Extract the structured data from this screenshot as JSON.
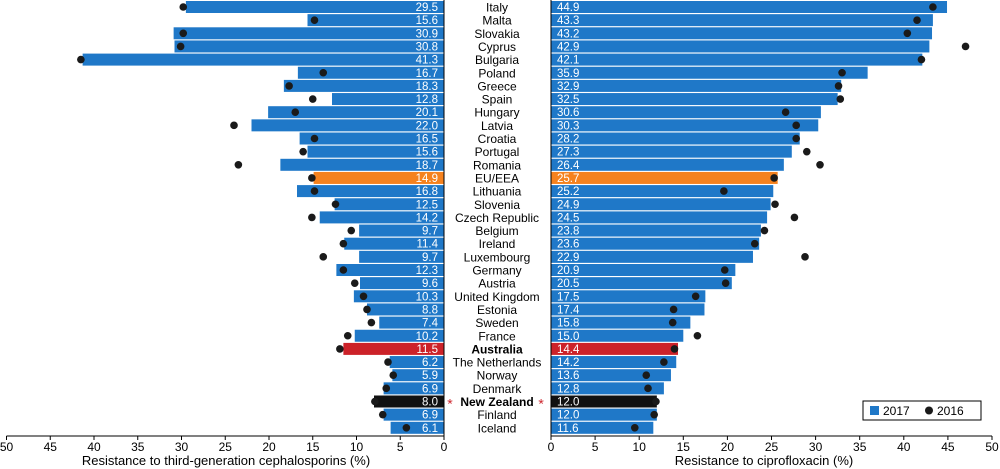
{
  "colors": {
    "bar_default": "#1f78c8",
    "bar_eu": "#f5821f",
    "bar_australia": "#cc2229",
    "bar_newzealand": "#111111",
    "dot": "#1a1a1a",
    "star": "#cc2229",
    "value_text": "#ffffff"
  },
  "chart_data": [
    {
      "type": "bar",
      "orientation": "horizontal",
      "x_direction": "reversed",
      "xlabel": "Resistance to third-generation cephalosporins (%)",
      "xlim": [
        0,
        50
      ],
      "xticks": [
        "0",
        "5",
        "10",
        "15",
        "20",
        "25",
        "30",
        "35",
        "40",
        "45",
        "50"
      ],
      "categories": [
        "Italy",
        "Malta",
        "Slovakia",
        "Cyprus",
        "Bulgaria",
        "Poland",
        "Greece",
        "Spain",
        "Hungary",
        "Latvia",
        "Croatia",
        "Portugal",
        "Romania",
        "EU/EEA",
        "Lithuania",
        "Slovenia",
        "Czech Republic",
        "Belgium",
        "Ireland",
        "Luxembourg",
        "Germany",
        "Austria",
        "United Kingdom",
        "Estonia",
        "Sweden",
        "France",
        "Australia",
        "The Netherlands",
        "Norway",
        "Denmark",
        "New Zealand",
        "Finland",
        "Iceland"
      ],
      "series": [
        {
          "name": "2017",
          "style": "bar",
          "values": [
            29.5,
            15.6,
            30.9,
            30.8,
            41.3,
            16.7,
            18.3,
            12.8,
            20.1,
            22.0,
            16.5,
            15.6,
            18.7,
            14.9,
            16.8,
            12.5,
            14.2,
            9.7,
            11.4,
            9.7,
            12.3,
            9.6,
            10.3,
            8.8,
            7.4,
            10.2,
            11.5,
            6.2,
            5.9,
            6.9,
            8.0,
            6.9,
            6.1
          ],
          "labels": [
            "29.5",
            "15.6",
            "30.9",
            "30.8",
            "41.3",
            "16.7",
            "18.3",
            "12.8",
            "20.1",
            "22.0",
            "16.5",
            "15.6",
            "18.7",
            "14.9",
            "16.8",
            "12.5",
            "14.2",
            "9.7",
            "11.4",
            "9.7",
            "12.3",
            "9.6",
            "10.3",
            "8.8",
            "7.4",
            "10.2",
            "11.5",
            "6.2",
            "5.9",
            "6.9",
            "8.0",
            "6.9",
            "6.1"
          ]
        },
        {
          "name": "2016",
          "style": "dot",
          "values": [
            29.8,
            14.8,
            29.8,
            30.1,
            41.5,
            13.8,
            17.7,
            15.0,
            17.0,
            24.0,
            14.8,
            16.1,
            23.5,
            15.1,
            14.8,
            12.4,
            15.1,
            10.6,
            11.5,
            13.8,
            11.5,
            10.2,
            9.2,
            8.8,
            8.3,
            11.0,
            11.9,
            6.4,
            5.8,
            6.6,
            7.9,
            7.0,
            4.3
          ]
        }
      ]
    },
    {
      "type": "bar",
      "orientation": "horizontal",
      "xlabel": "Resistance to ciprofloxacin (%)",
      "xlim": [
        0,
        50
      ],
      "xticks": [
        "0",
        "5",
        "10",
        "15",
        "20",
        "25",
        "30",
        "35",
        "40",
        "45",
        "50"
      ],
      "categories": [
        "Italy",
        "Malta",
        "Slovakia",
        "Cyprus",
        "Bulgaria",
        "Poland",
        "Greece",
        "Spain",
        "Hungary",
        "Latvia",
        "Croatia",
        "Portugal",
        "Romania",
        "EU/EEA",
        "Lithuania",
        "Slovenia",
        "Czech Republic",
        "Belgium",
        "Ireland",
        "Luxembourg",
        "Germany",
        "Austria",
        "United Kingdom",
        "Estonia",
        "Sweden",
        "France",
        "Australia",
        "The Netherlands",
        "Norway",
        "Denmark",
        "New Zealand",
        "Finland",
        "Iceland"
      ],
      "series": [
        {
          "name": "2017",
          "style": "bar",
          "values": [
            44.9,
            43.3,
            43.2,
            42.9,
            42.1,
            35.9,
            32.9,
            32.5,
            30.6,
            30.3,
            28.2,
            27.3,
            26.4,
            25.7,
            25.2,
            24.9,
            24.5,
            23.8,
            23.6,
            22.9,
            20.9,
            20.5,
            17.5,
            17.4,
            15.8,
            15.0,
            14.4,
            14.2,
            13.6,
            12.8,
            12.0,
            12.0,
            11.6
          ],
          "labels": [
            "44.9",
            "43.3",
            "43.2",
            "42.9",
            "42.1",
            "35.9",
            "32.9",
            "32.5",
            "30.6",
            "30.3",
            "28.2",
            "27.3",
            "26.4",
            "25.7",
            "25.2",
            "24.9",
            "24.5",
            "23.8",
            "23.6",
            "22.9",
            "20.9",
            "20.5",
            "17.5",
            "17.4",
            "15.8",
            "15.0",
            "14.4",
            "14.2",
            "13.6",
            "12.8",
            "12.0",
            "12.0",
            "11.6"
          ]
        },
        {
          "name": "2016",
          "style": "dot",
          "values": [
            43.3,
            41.5,
            40.4,
            47.0,
            42.0,
            33.0,
            32.6,
            32.8,
            26.6,
            27.8,
            27.8,
            29.0,
            30.5,
            25.3,
            19.6,
            25.4,
            27.6,
            24.2,
            23.1,
            28.8,
            19.7,
            19.8,
            16.4,
            13.9,
            13.8,
            16.6,
            14.0,
            12.8,
            10.8,
            11.0,
            11.9,
            11.7,
            9.5
          ]
        }
      ]
    }
  ],
  "legend": {
    "position": "bottom-right",
    "items": [
      {
        "label": "2017",
        "marker": "square"
      },
      {
        "label": "2016",
        "marker": "dot"
      }
    ]
  },
  "markers": {
    "star": "*"
  },
  "highlighted_rows": {
    "eu": "EU/EEA",
    "australia": "Australia",
    "new_zealand": "New Zealand"
  },
  "bold_rows": [
    "Australia",
    "New Zealand"
  ],
  "starred_rows": [
    "New Zealand"
  ]
}
